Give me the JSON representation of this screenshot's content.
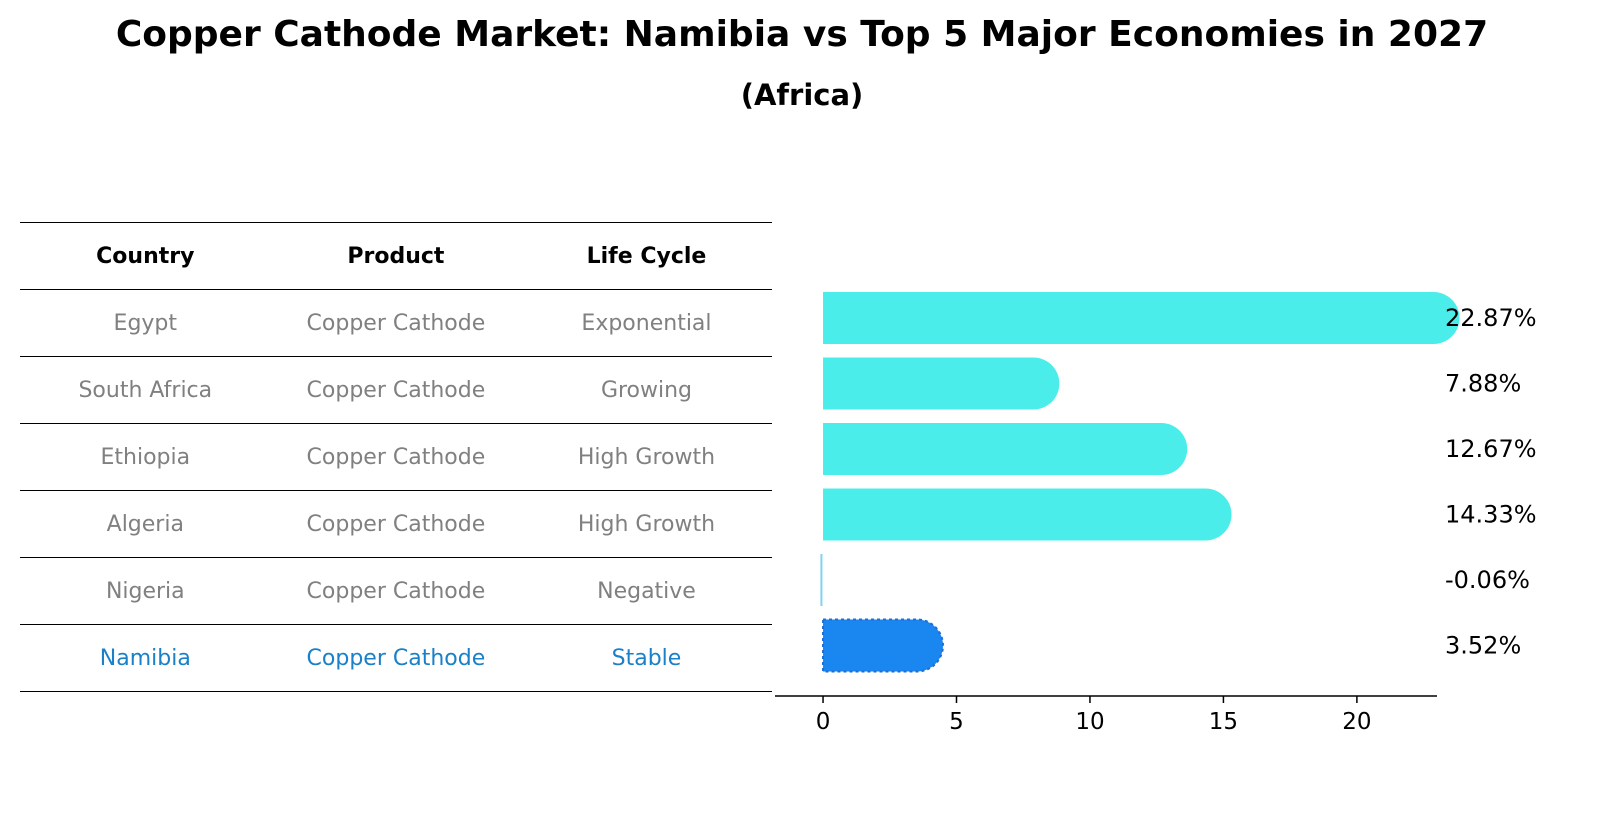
{
  "title": "Copper Cathode Market: Namibia vs Top 5 Major Economies in 2027",
  "subtitle": "(Africa)",
  "table": {
    "headers": [
      "Country",
      "Product",
      "Life Cycle"
    ],
    "rows": [
      [
        "Egypt",
        "Copper Cathode",
        "Exponential"
      ],
      [
        "South Africa",
        "Copper Cathode",
        "Growing"
      ],
      [
        "Ethiopia",
        "Copper Cathode",
        "High Growth"
      ],
      [
        "Algeria",
        "Copper Cathode",
        "High Growth"
      ],
      [
        "Nigeria",
        "Copper Cathode",
        "Negative"
      ],
      [
        "Namibia",
        "Copper Cathode",
        "Stable"
      ]
    ],
    "highlight_row": 5
  },
  "colors": {
    "bar": "#4bedea",
    "highlight_bar": "#1a86f0",
    "highlight_text": "#1a80c8",
    "row_text": "#808080"
  },
  "chart_data": {
    "type": "bar",
    "orientation": "horizontal",
    "categories": [
      "Egypt",
      "South Africa",
      "Ethiopia",
      "Algeria",
      "Nigeria",
      "Namibia"
    ],
    "values": [
      22.87,
      7.88,
      12.67,
      14.33,
      -0.06,
      3.52
    ],
    "value_labels": [
      "22.87%",
      "7.88%",
      "12.67%",
      "14.33%",
      "-0.06%",
      "3.52%"
    ],
    "highlight_index": 5,
    "xticks": [
      0,
      5,
      10,
      15,
      20
    ],
    "xlim": [
      -1.2,
      24.2
    ],
    "grid": false,
    "legend": "none"
  }
}
